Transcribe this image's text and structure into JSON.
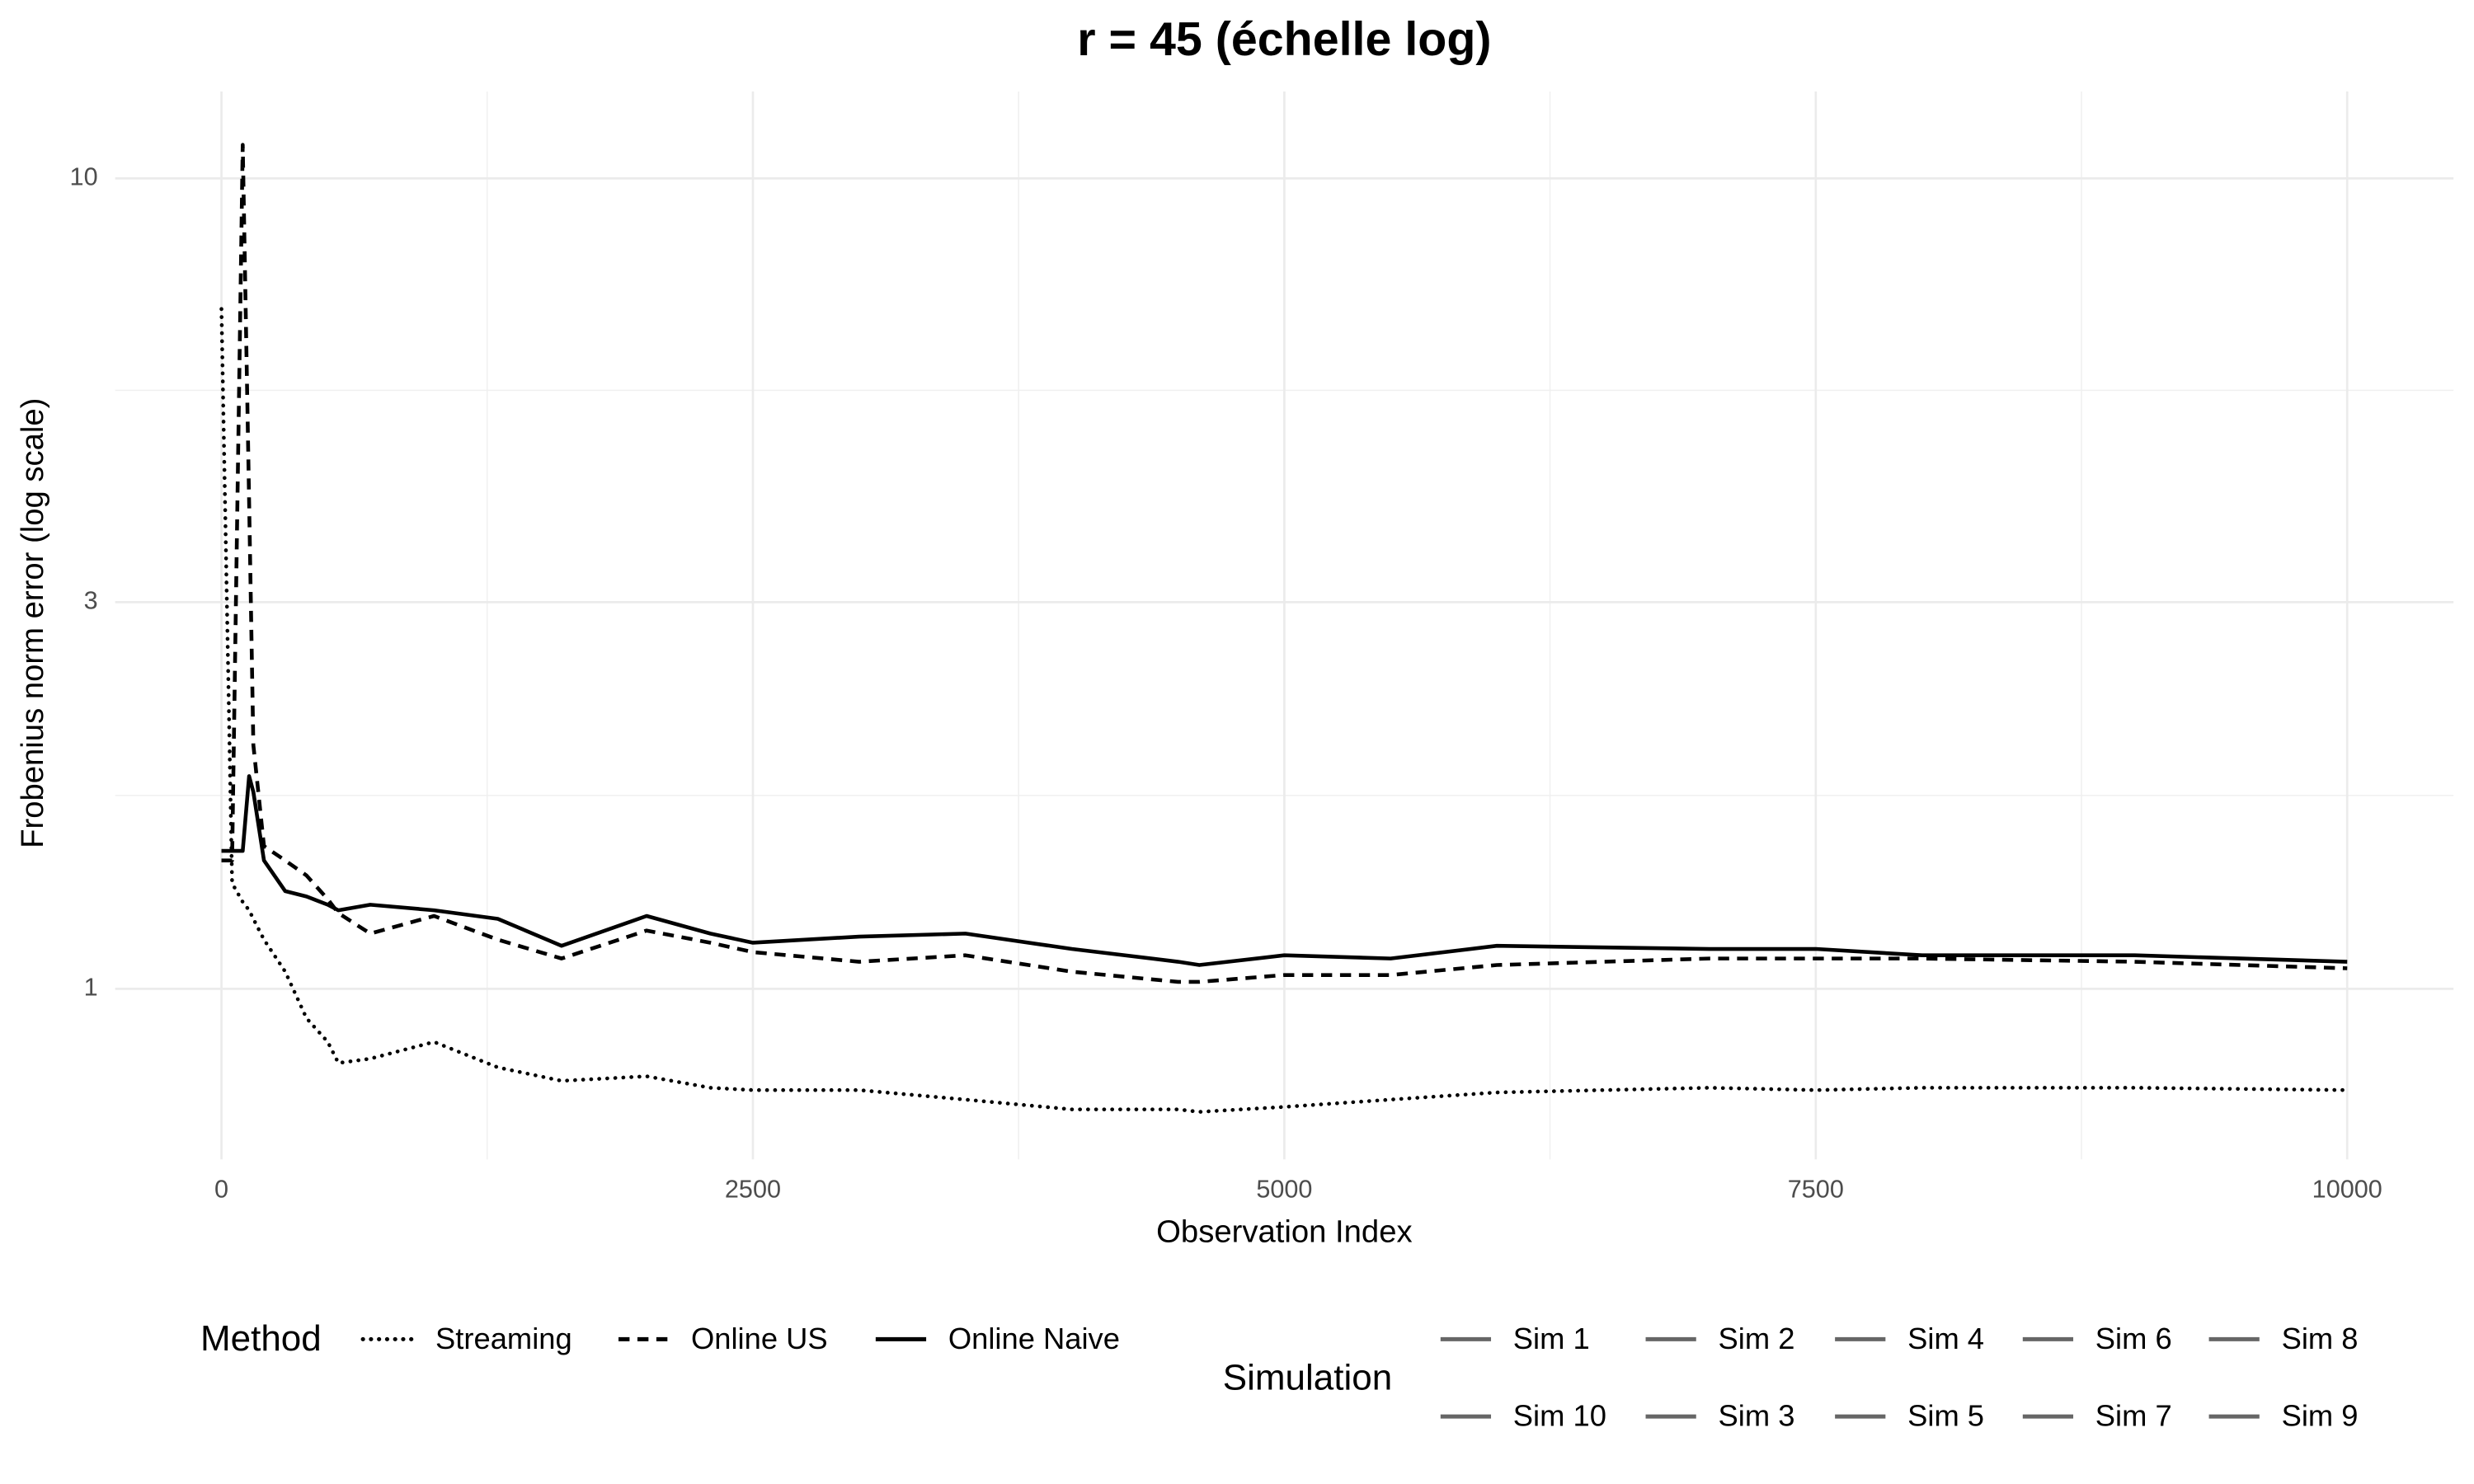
{
  "chart_data": {
    "type": "line",
    "title": "r = 45 (échelle log)",
    "x_label": "Observation Index",
    "y_label": "Frobenius norm error (log scale)",
    "x": [
      0,
      50,
      100,
      130,
      150,
      200,
      300,
      400,
      500,
      550,
      700,
      1000,
      1300,
      1600,
      2000,
      2300,
      2500,
      3000,
      3500,
      4000,
      4500,
      4600,
      5000,
      5500,
      6000,
      7000,
      7500,
      8000,
      9000,
      10000
    ],
    "series": [
      {
        "name": "Streaming",
        "color": "#000000",
        "dash": "dotted",
        "values": [
          6.9,
          1.35,
          1.28,
          1.25,
          1.22,
          1.15,
          1.05,
          0.92,
          0.86,
          0.81,
          0.82,
          0.86,
          0.8,
          0.77,
          0.78,
          0.755,
          0.75,
          0.75,
          0.73,
          0.71,
          0.71,
          0.705,
          0.715,
          0.73,
          0.745,
          0.755,
          0.75,
          0.755,
          0.755,
          0.75
        ]
      },
      {
        "name": "Online US",
        "color": "#000000",
        "dash": "dashed",
        "values": [
          1.44,
          1.44,
          11,
          4,
          2.0,
          1.5,
          1.44,
          1.38,
          1.29,
          1.24,
          1.17,
          1.23,
          1.15,
          1.09,
          1.18,
          1.14,
          1.11,
          1.08,
          1.1,
          1.05,
          1.02,
          1.02,
          1.04,
          1.04,
          1.07,
          1.09,
          1.09,
          1.09,
          1.08,
          1.06
        ]
      },
      {
        "name": "Online Naive",
        "color": "#000000",
        "dash": "solid",
        "values": [
          1.48,
          1.48,
          1.48,
          1.83,
          1.75,
          1.44,
          1.32,
          1.3,
          1.27,
          1.25,
          1.27,
          1.25,
          1.22,
          1.13,
          1.23,
          1.17,
          1.14,
          1.16,
          1.17,
          1.12,
          1.08,
          1.07,
          1.1,
          1.09,
          1.13,
          1.12,
          1.12,
          1.1,
          1.1,
          1.08
        ]
      }
    ],
    "legend_title": "Method",
    "simulation_legend": {
      "title": "Simulation",
      "color": "#666666",
      "items": [
        "Sim 1",
        "Sim 10",
        "Sim 2",
        "Sim 3",
        "Sim 4",
        "Sim 5",
        "Sim 6",
        "Sim 7",
        "Sim 8",
        "Sim 9"
      ]
    },
    "xlim": [
      -500,
      10500
    ],
    "xticks": [
      0,
      2500,
      5000,
      7500,
      10000
    ],
    "ylim": [
      0.616,
      12.8
    ],
    "yticks": [
      1,
      3,
      10
    ],
    "log_y": true,
    "grid": true,
    "legend_position": "bottom"
  }
}
